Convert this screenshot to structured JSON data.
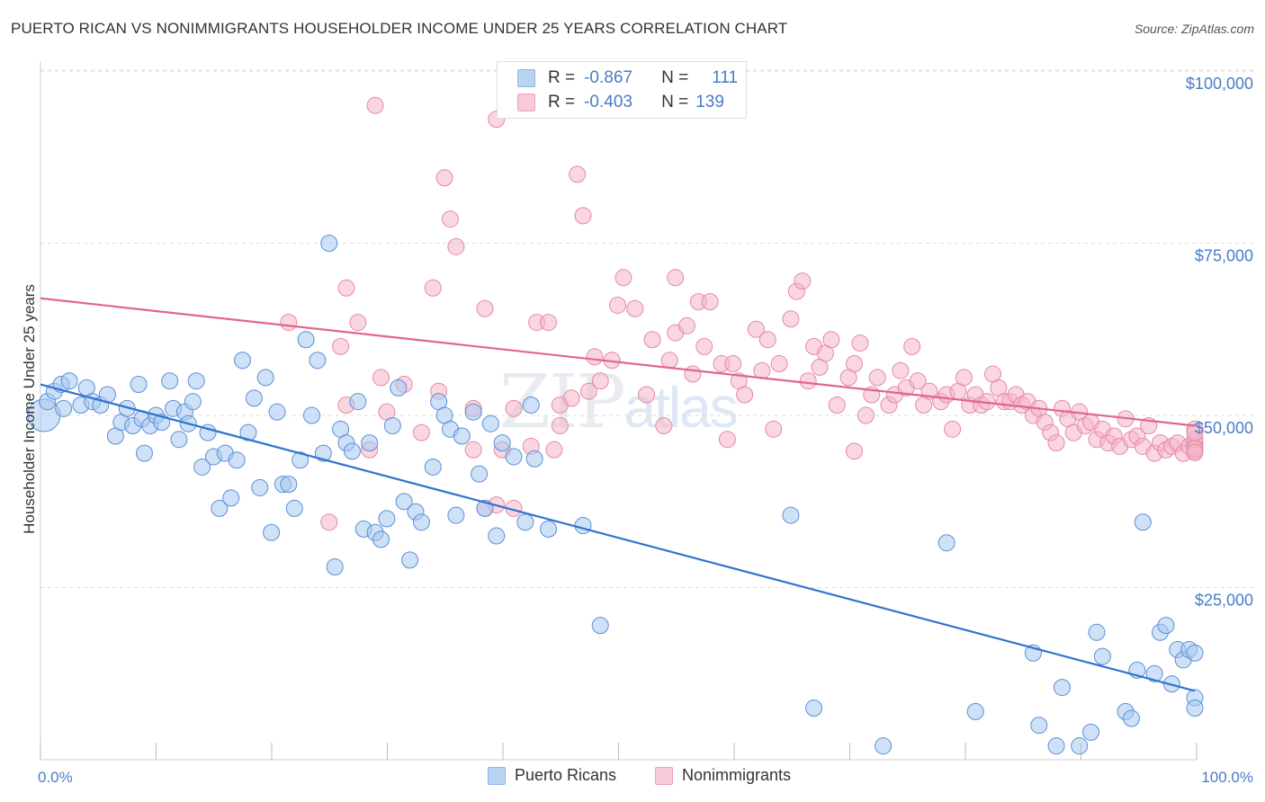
{
  "title": "PUERTO RICAN VS NONIMMIGRANTS HOUSEHOLDER INCOME UNDER 25 YEARS CORRELATION CHART",
  "source": "Source: ZipAtlas.com",
  "watermark": {
    "zip": "ZIP",
    "atlas": "atlas"
  },
  "legend": {
    "rows": [
      {
        "r_label": "R =",
        "r_value": "-0.867",
        "n_label": "N =",
        "n_value": "111",
        "color": "#a8c8f0"
      },
      {
        "r_label": "R =",
        "r_value": "-0.403",
        "n_label": "N =",
        "n_value": "139",
        "color": "#f5b5c8"
      }
    ]
  },
  "bottom_legend": [
    {
      "label": "Puerto Ricans",
      "color": "#a8c8f0"
    },
    {
      "label": "Nonimmigrants",
      "color": "#f5b5c8"
    }
  ],
  "chart_data": {
    "type": "scatter",
    "title": "PUERTO RICAN VS NONIMMIGRANTS HOUSEHOLDER INCOME UNDER 25 YEARS CORRELATION CHART",
    "ylabel": "Householder Income Under 25 years",
    "xlabel": "",
    "xlim": [
      0,
      100
    ],
    "ylim": [
      0,
      100000
    ],
    "x_tick_labels": [
      "0.0%",
      "100.0%"
    ],
    "y_ticks": [
      25000,
      50000,
      75000,
      100000
    ],
    "y_tick_labels": [
      "$25,000",
      "$50,000",
      "$75,000",
      "$100,000"
    ],
    "grid": "horizontal dashed",
    "series": [
      {
        "name": "Puerto Ricans",
        "color": "#5b8fd6",
        "fill": "#a8c8f0",
        "trend": {
          "x": [
            0,
            100
          ],
          "y": [
            54500,
            10000
          ],
          "color": "#2f74d0"
        },
        "points": [
          [
            0.3,
            50000
          ],
          [
            0.6,
            52000
          ],
          [
            1.2,
            53500
          ],
          [
            1.8,
            54500
          ],
          [
            2.0,
            51000
          ],
          [
            2.5,
            55000
          ],
          [
            3.5,
            51500
          ],
          [
            4.0,
            54000
          ],
          [
            4.5,
            52000
          ],
          [
            5.2,
            51500
          ],
          [
            5.8,
            53000
          ],
          [
            6.5,
            47000
          ],
          [
            7.0,
            49000
          ],
          [
            7.5,
            51000
          ],
          [
            8.0,
            48500
          ],
          [
            8.5,
            54500
          ],
          [
            8.8,
            49500
          ],
          [
            9.0,
            44500
          ],
          [
            9.5,
            48500
          ],
          [
            10.0,
            50000
          ],
          [
            10.5,
            49000
          ],
          [
            11.2,
            55000
          ],
          [
            11.5,
            51000
          ],
          [
            12.0,
            46500
          ],
          [
            12.5,
            50500
          ],
          [
            12.8,
            48800
          ],
          [
            13.2,
            52000
          ],
          [
            13.5,
            55000
          ],
          [
            14.0,
            42500
          ],
          [
            14.5,
            47500
          ],
          [
            15.0,
            44000
          ],
          [
            15.5,
            36500
          ],
          [
            16.0,
            44500
          ],
          [
            16.5,
            38000
          ],
          [
            17.0,
            43500
          ],
          [
            17.5,
            58000
          ],
          [
            18.0,
            47500
          ],
          [
            18.5,
            52500
          ],
          [
            19.0,
            39500
          ],
          [
            19.5,
            55500
          ],
          [
            20.0,
            33000
          ],
          [
            20.5,
            50500
          ],
          [
            21.0,
            40000
          ],
          [
            21.5,
            40000
          ],
          [
            22.0,
            36500
          ],
          [
            22.5,
            43500
          ],
          [
            23.0,
            61000
          ],
          [
            23.5,
            50000
          ],
          [
            24.0,
            58000
          ],
          [
            24.5,
            44500
          ],
          [
            25.0,
            75000
          ],
          [
            25.5,
            28000
          ],
          [
            26.0,
            48000
          ],
          [
            26.5,
            46000
          ],
          [
            27.0,
            44800
          ],
          [
            27.5,
            52000
          ],
          [
            28.0,
            33500
          ],
          [
            28.5,
            46000
          ],
          [
            29.0,
            33000
          ],
          [
            29.5,
            32000
          ],
          [
            30.0,
            35000
          ],
          [
            30.5,
            48500
          ],
          [
            31.0,
            54000
          ],
          [
            31.5,
            37500
          ],
          [
            32.0,
            29000
          ],
          [
            32.5,
            36000
          ],
          [
            33.0,
            34500
          ],
          [
            34.0,
            42500
          ],
          [
            34.5,
            52000
          ],
          [
            35.0,
            50000
          ],
          [
            35.5,
            48000
          ],
          [
            36.0,
            35500
          ],
          [
            36.5,
            47000
          ],
          [
            37.5,
            50500
          ],
          [
            38.0,
            41500
          ],
          [
            38.5,
            36500
          ],
          [
            39.0,
            48800
          ],
          [
            39.5,
            32500
          ],
          [
            40.0,
            46000
          ],
          [
            41.0,
            44000
          ],
          [
            42.0,
            34500
          ],
          [
            42.5,
            51500
          ],
          [
            42.8,
            43700
          ],
          [
            44.0,
            33500
          ],
          [
            47.0,
            34000
          ],
          [
            48.5,
            19500
          ],
          [
            65.0,
            35500
          ],
          [
            67.0,
            7500
          ],
          [
            73.0,
            2000
          ],
          [
            78.5,
            31500
          ],
          [
            81.0,
            7000
          ],
          [
            86.0,
            15500
          ],
          [
            86.5,
            5000
          ],
          [
            88.0,
            2000
          ],
          [
            88.5,
            10500
          ],
          [
            90.0,
            2000
          ],
          [
            91.0,
            4000
          ],
          [
            91.5,
            18500
          ],
          [
            92.0,
            15000
          ],
          [
            94.0,
            7000
          ],
          [
            94.5,
            6000
          ],
          [
            95.0,
            13000
          ],
          [
            95.5,
            34500
          ],
          [
            96.5,
            12500
          ],
          [
            97.0,
            18500
          ],
          [
            97.5,
            19500
          ],
          [
            98.0,
            11000
          ],
          [
            98.5,
            16000
          ],
          [
            99.0,
            14500
          ],
          [
            99.5,
            16000
          ],
          [
            100.0,
            9000
          ],
          [
            100.0,
            7500
          ],
          [
            100.0,
            15500
          ]
        ]
      },
      {
        "name": "Nonimmigrants",
        "color": "#e38aa6",
        "fill": "#f5b5c8",
        "trend": {
          "x": [
            0,
            100
          ],
          "y": [
            67000,
            48500
          ],
          "color": "#e0658f"
        },
        "points": [
          [
            21.5,
            63500
          ],
          [
            25.0,
            34500
          ],
          [
            26.0,
            60000
          ],
          [
            26.5,
            51500
          ],
          [
            26.5,
            68500
          ],
          [
            27.5,
            63500
          ],
          [
            28.5,
            45000
          ],
          [
            29.0,
            95000
          ],
          [
            29.5,
            55500
          ],
          [
            30.0,
            50500
          ],
          [
            31.5,
            54500
          ],
          [
            33.0,
            47500
          ],
          [
            34.0,
            68500
          ],
          [
            34.5,
            53500
          ],
          [
            35.0,
            84500
          ],
          [
            35.5,
            78500
          ],
          [
            36.0,
            74500
          ],
          [
            37.5,
            51000
          ],
          [
            37.5,
            45000
          ],
          [
            38.5,
            36500
          ],
          [
            38.5,
            65500
          ],
          [
            39.5,
            37000
          ],
          [
            39.5,
            93000
          ],
          [
            40.0,
            45000
          ],
          [
            41.0,
            51000
          ],
          [
            41.0,
            36500
          ],
          [
            42.5,
            45500
          ],
          [
            43.0,
            63500
          ],
          [
            44.0,
            63500
          ],
          [
            44.5,
            45000
          ],
          [
            45.0,
            51500
          ],
          [
            45.0,
            48500
          ],
          [
            46.0,
            52500
          ],
          [
            46.5,
            85000
          ],
          [
            47.0,
            79000
          ],
          [
            47.5,
            53500
          ],
          [
            48.0,
            58500
          ],
          [
            48.5,
            55000
          ],
          [
            49.5,
            58000
          ],
          [
            50.0,
            66000
          ],
          [
            50.5,
            70000
          ],
          [
            51.5,
            65500
          ],
          [
            52.5,
            53000
          ],
          [
            53.0,
            61000
          ],
          [
            54.0,
            48500
          ],
          [
            54.5,
            58000
          ],
          [
            55.0,
            62000
          ],
          [
            55.0,
            70000
          ],
          [
            56.0,
            63000
          ],
          [
            56.5,
            56000
          ],
          [
            57.0,
            66500
          ],
          [
            57.5,
            60000
          ],
          [
            58.0,
            66500
          ],
          [
            59.0,
            57500
          ],
          [
            59.5,
            46500
          ],
          [
            60.0,
            57500
          ],
          [
            60.5,
            55000
          ],
          [
            61.0,
            53000
          ],
          [
            62.0,
            62500
          ],
          [
            62.5,
            56500
          ],
          [
            63.0,
            61000
          ],
          [
            63.5,
            48000
          ],
          [
            64.0,
            57500
          ],
          [
            65.0,
            64000
          ],
          [
            65.5,
            68000
          ],
          [
            66.0,
            69500
          ],
          [
            66.5,
            55000
          ],
          [
            67.0,
            60000
          ],
          [
            67.5,
            57000
          ],
          [
            68.0,
            59000
          ],
          [
            68.5,
            61000
          ],
          [
            69.0,
            51500
          ],
          [
            70.0,
            55500
          ],
          [
            70.5,
            57500
          ],
          [
            70.5,
            44800
          ],
          [
            71.0,
            60500
          ],
          [
            71.5,
            50000
          ],
          [
            72.0,
            53000
          ],
          [
            72.5,
            55500
          ],
          [
            73.5,
            51500
          ],
          [
            74.0,
            53000
          ],
          [
            74.5,
            56500
          ],
          [
            75.0,
            54000
          ],
          [
            75.5,
            60000
          ],
          [
            76.0,
            55000
          ],
          [
            76.5,
            51500
          ],
          [
            77.0,
            53500
          ],
          [
            78.0,
            52000
          ],
          [
            78.5,
            53000
          ],
          [
            79.0,
            48000
          ],
          [
            79.5,
            53500
          ],
          [
            80.0,
            55500
          ],
          [
            80.5,
            51500
          ],
          [
            81.0,
            53000
          ],
          [
            81.5,
            51500
          ],
          [
            82.0,
            52000
          ],
          [
            82.5,
            56000
          ],
          [
            83.0,
            54000
          ],
          [
            83.5,
            52000
          ],
          [
            84.0,
            52000
          ],
          [
            84.5,
            53000
          ],
          [
            85.0,
            51500
          ],
          [
            85.5,
            52000
          ],
          [
            86.0,
            50000
          ],
          [
            86.5,
            51000
          ],
          [
            87.0,
            49000
          ],
          [
            87.5,
            47500
          ],
          [
            88.0,
            46000
          ],
          [
            88.5,
            51000
          ],
          [
            89.0,
            49500
          ],
          [
            89.5,
            47500
          ],
          [
            90.0,
            50500
          ],
          [
            90.5,
            48500
          ],
          [
            91.0,
            49000
          ],
          [
            91.5,
            46500
          ],
          [
            92.0,
            48000
          ],
          [
            92.5,
            46000
          ],
          [
            93.0,
            47000
          ],
          [
            93.5,
            45500
          ],
          [
            94.0,
            49500
          ],
          [
            94.5,
            46500
          ],
          [
            95.0,
            47000
          ],
          [
            95.5,
            45500
          ],
          [
            96.0,
            48500
          ],
          [
            96.5,
            44500
          ],
          [
            97.0,
            46000
          ],
          [
            97.5,
            45000
          ],
          [
            98.0,
            45500
          ],
          [
            98.5,
            46000
          ],
          [
            99.0,
            44500
          ],
          [
            99.5,
            45500
          ],
          [
            100.0,
            46000
          ],
          [
            100.0,
            45000
          ],
          [
            100.0,
            48000
          ],
          [
            100.0,
            45500
          ],
          [
            100.0,
            44800
          ],
          [
            100.0,
            46500
          ],
          [
            100.0,
            45200
          ],
          [
            100.0,
            47500
          ],
          [
            100.0,
            44600
          ]
        ]
      }
    ]
  }
}
